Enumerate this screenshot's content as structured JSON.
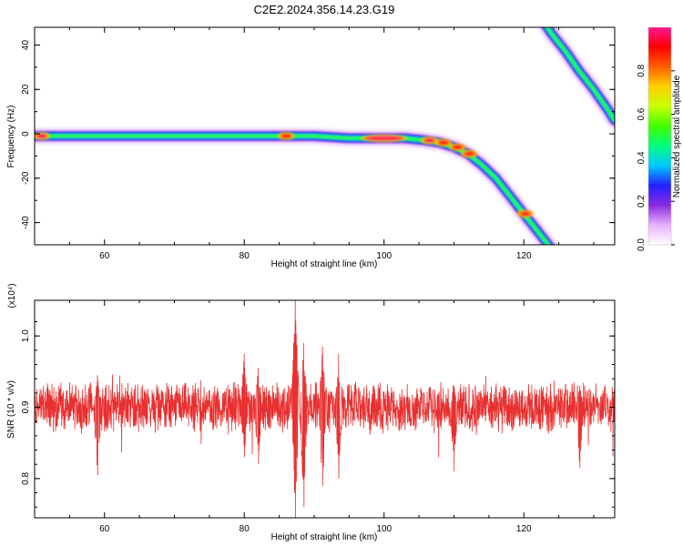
{
  "title": "C2E2.2024.356.14.23.G19",
  "chart_data": [
    {
      "type": "heatmap",
      "xlabel": "Height of straight line (km)",
      "ylabel": "Frequency (Hz)",
      "xlim": [
        50,
        133
      ],
      "ylim": [
        -50,
        48
      ],
      "xticks": [
        60,
        80,
        100,
        120
      ],
      "yticks": [
        40,
        20,
        0,
        -20,
        -40
      ],
      "colorbar": {
        "label": "Normalized spectral amplitude",
        "range": [
          0.0,
          1.0
        ],
        "ticks": [
          "0.0",
          "0.2",
          "0.4",
          "0.6",
          "0.8"
        ],
        "colors": [
          "#ffffff",
          "#e8b0ff",
          "#8a2be2",
          "#2020ff",
          "#00c8ff",
          "#00ff80",
          "#40ff00",
          "#c8ff00",
          "#ffd000",
          "#ff6000",
          "#ff0000",
          "#ff1493"
        ]
      },
      "ridge": {
        "x": [
          50,
          60,
          70,
          80,
          86,
          90,
          95,
          100,
          103,
          106,
          108,
          110,
          112,
          114,
          116,
          118,
          120,
          122,
          124
        ],
        "y": [
          -1,
          -1,
          -1,
          -1,
          -1,
          -1,
          -2,
          -2,
          -2,
          -3,
          -4,
          -6,
          -9,
          -14,
          -20,
          -28,
          -36,
          -44,
          -52
        ]
      },
      "ridge2": {
        "x": [
          122.5,
          124,
          126,
          128,
          130,
          132,
          133
        ],
        "y": [
          52,
          45,
          37,
          28,
          20,
          11,
          6
        ]
      },
      "hotspots": [
        {
          "x": 51,
          "y": -1,
          "level": 1.0
        },
        {
          "x": 86,
          "y": -1,
          "level": 0.9
        },
        {
          "x": 100,
          "y": -2,
          "level": 1.0
        },
        {
          "x": 106.5,
          "y": -3,
          "level": 0.95
        },
        {
          "x": 108.5,
          "y": -4,
          "level": 0.85
        },
        {
          "x": 110.5,
          "y": -6,
          "level": 0.85
        },
        {
          "x": 112.2,
          "y": -9,
          "level": 0.85
        },
        {
          "x": 120.2,
          "y": -36,
          "level": 0.85
        }
      ]
    },
    {
      "type": "line",
      "xlabel": "Height of straight line (km)",
      "ylabel": "SNR (10 * v/v)",
      "multiplier": "(x10⁴)",
      "xlim": [
        50,
        133
      ],
      "ylim": [
        0.745,
        1.05
      ],
      "xticks": [
        60,
        80,
        100,
        120
      ],
      "yticks": [
        1.0,
        0.9,
        0.8
      ],
      "baseline": 0.9,
      "color": "#e83030",
      "features": [
        {
          "x": 87.3,
          "y_max": 1.05,
          "y_min": 0.745
        },
        {
          "x": 88.5,
          "y_max": 0.99,
          "y_min": 0.76
        },
        {
          "x": 91.2,
          "y_max": 0.985,
          "y_min": 0.79
        },
        {
          "x": 93.5,
          "y_max": 0.975,
          "y_min": 0.8
        },
        {
          "x": 80.0,
          "y_max": 0.975,
          "y_min": 0.83
        },
        {
          "x": 82.0,
          "y_max": 0.955,
          "y_min": 0.82
        },
        {
          "x": 59.0,
          "y_max": 0.945,
          "y_min": 0.805
        },
        {
          "x": 110.0,
          "y_max": 0.93,
          "y_min": 0.81
        },
        {
          "x": 128.0,
          "y_max": 0.93,
          "y_min": 0.815
        }
      ]
    }
  ]
}
